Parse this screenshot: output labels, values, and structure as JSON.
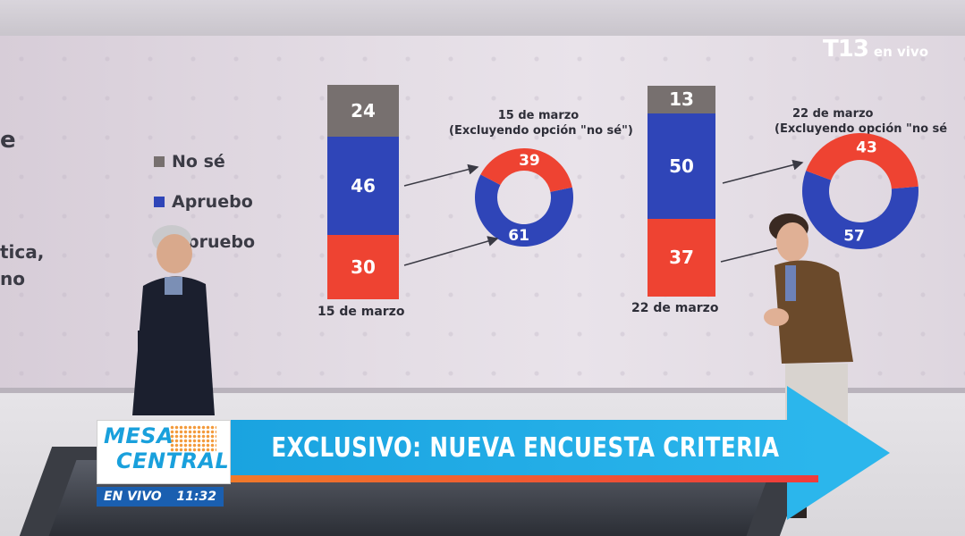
{
  "broadcast": {
    "logo": "T13",
    "logo_sub": "en vivo",
    "program_line1": "MESA",
    "program_line2": "CENTRAL",
    "live_label": "EN VIVO",
    "time": "11:32",
    "headline": "EXCLUSIVO: NUEVA ENCUESTA CRITERIA"
  },
  "wall_text": {
    "cut_e": "e",
    "cut_tica": "tica,",
    "cut_no": "no"
  },
  "colors": {
    "no_se": "#77706f",
    "apruebo": "#2f45b8",
    "desapruebo": "#ee4332"
  },
  "chart_data": [
    {
      "type": "bar",
      "stacked": true,
      "categories": [
        "15 de marzo"
      ],
      "series": [
        {
          "name": "No sé",
          "values": [
            24
          ]
        },
        {
          "name": "Apruebo",
          "values": [
            46
          ]
        },
        {
          "name": "Desapruebo",
          "values": [
            30
          ]
        }
      ],
      "legend": {
        "placement": "left",
        "entries": [
          "No sé",
          "Apruebo",
          "esapruebo"
        ]
      }
    },
    {
      "type": "pie",
      "donut": true,
      "title": "15 de marzo",
      "subtitle": "(Excluyendo opción \"no sé\")",
      "slices": [
        {
          "name": "Apruebo",
          "value": 61
        },
        {
          "name": "Desapruebo",
          "value": 39
        }
      ]
    },
    {
      "type": "bar",
      "stacked": true,
      "categories": [
        "22 de marzo"
      ],
      "series": [
        {
          "name": "No sé",
          "values": [
            13
          ]
        },
        {
          "name": "Apruebo",
          "values": [
            50
          ]
        },
        {
          "name": "Desapruebo",
          "values": [
            37
          ]
        }
      ]
    },
    {
      "type": "pie",
      "donut": true,
      "title": "22 de marzo",
      "subtitle": "(Excluyendo opción \"no sé",
      "slices": [
        {
          "name": "Apruebo",
          "value": 57
        },
        {
          "name": "Desapruebo",
          "value": 43
        }
      ]
    }
  ]
}
